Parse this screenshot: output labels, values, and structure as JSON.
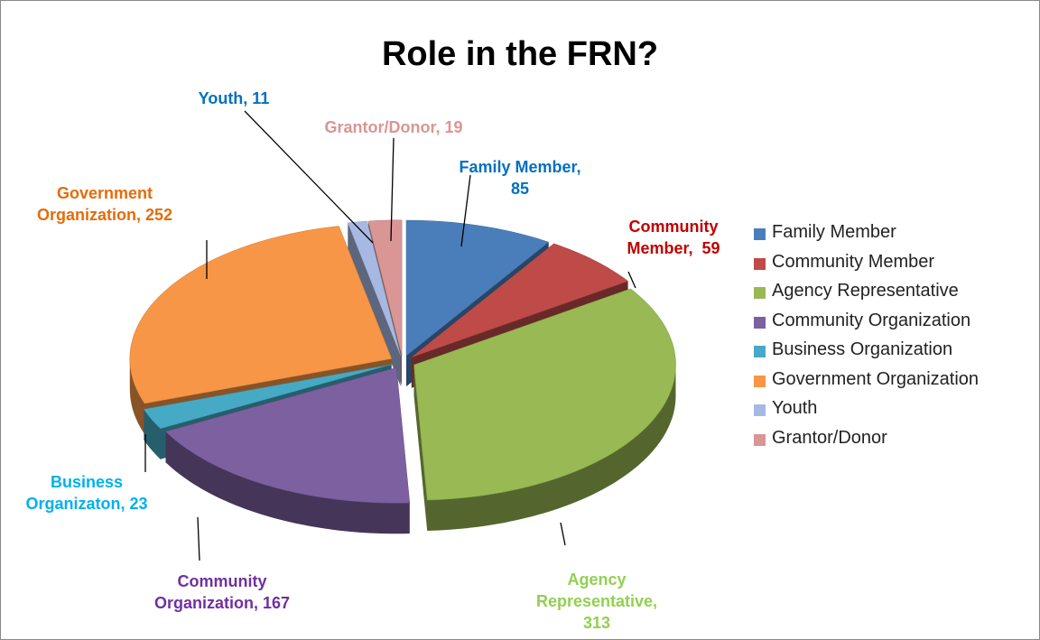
{
  "chart_data": {
    "type": "pie",
    "title": "Role in the FRN?",
    "categories": [
      "Family Member",
      "Community Member",
      "Agency Representative",
      "Community Organization",
      "Business Organization",
      "Government Organization",
      "Youth",
      "Grantor/Donor"
    ],
    "values": [
      85,
      59,
      313,
      167,
      23,
      252,
      11,
      19
    ],
    "value_labels": [
      "Family Member, 85",
      "Community Member,  59",
      "Agency Representative, 313",
      "Community Organization, 167",
      "Business Organizaton, 23",
      "Government Organization, 252",
      "Youth, 11",
      "Grantor/Donor, 19"
    ],
    "colors": [
      "#4a7ebb",
      "#be4b48",
      "#98b954",
      "#7d60a0",
      "#46aac5",
      "#f79646",
      "#a7b9e3",
      "#d99694"
    ],
    "label_colors": [
      "#0070c0",
      "#c00000",
      "#92d050",
      "#7030a0",
      "#00b0f0",
      "#e46c0a",
      "#0070c0",
      "#d99694"
    ],
    "legend": "right"
  }
}
